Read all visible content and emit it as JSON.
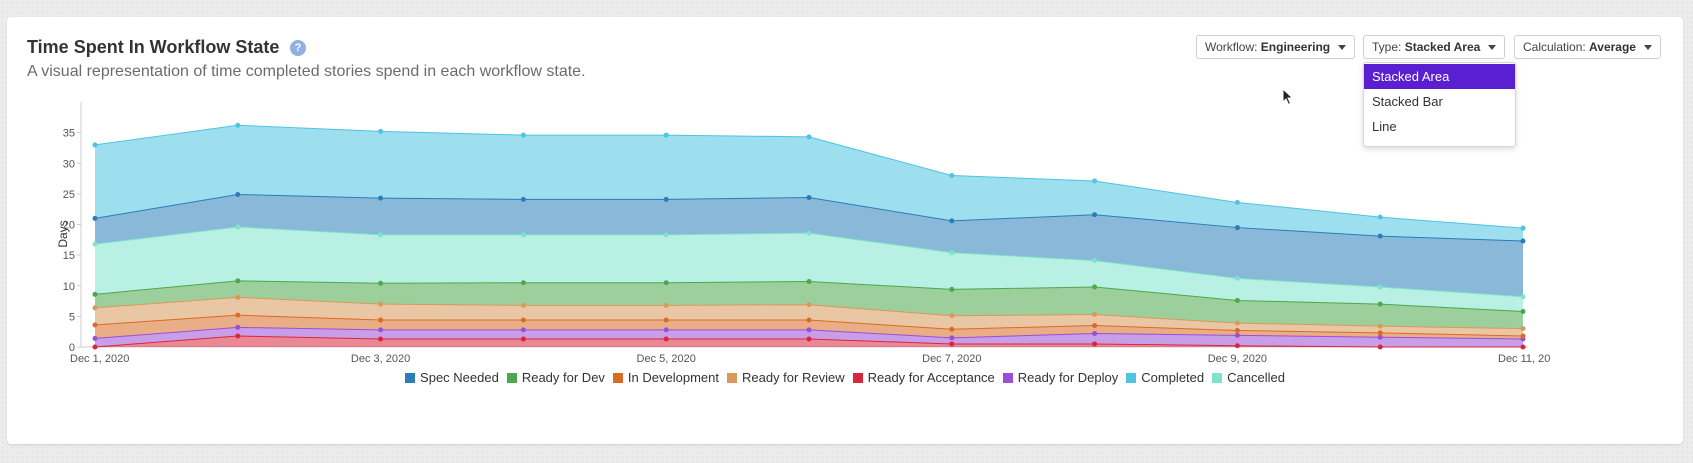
{
  "header": {
    "title": "Time Spent In Workflow State",
    "help_icon": "?",
    "subtitle": "A visual representation of time completed stories spend in each workflow state."
  },
  "controls": {
    "workflow": {
      "label": "Workflow:",
      "value": "Engineering"
    },
    "type": {
      "label": "Type:",
      "value": "Stacked Area"
    },
    "calculation": {
      "label": "Calculation:",
      "value": "Average"
    }
  },
  "type_menu": {
    "open": true,
    "options": [
      "Stacked Area",
      "Stacked Bar",
      "Line"
    ],
    "selected": "Stacked Area",
    "highlight_color": "#5a1fd1"
  },
  "chart_data": {
    "type": "area",
    "stacked": true,
    "ylabel": "Days",
    "ylim": [
      0,
      40
    ],
    "yticks": [
      0,
      5,
      10,
      15,
      20,
      25,
      30,
      35
    ],
    "x_labels": [
      "Dec 1, 2020",
      "Dec 3, 2020",
      "Dec 5, 2020",
      "Dec 7, 2020",
      "Dec 9, 2020",
      "Dec 11, 20"
    ],
    "x": [
      "2020-12-01",
      "2020-12-02",
      "2020-12-03",
      "2020-12-04",
      "2020-12-05",
      "2020-12-06",
      "2020-12-07",
      "2020-12-08",
      "2020-12-09",
      "2020-12-10",
      "2020-12-11"
    ],
    "series": [
      {
        "name": "Ready for Acceptance",
        "color": "#d9263f",
        "values": [
          0.0,
          1.8,
          1.3,
          1.3,
          1.3,
          1.3,
          0.5,
          0.5,
          0.2,
          0.0,
          0.0
        ]
      },
      {
        "name": "Ready for Deploy",
        "color": "#9a4fd6",
        "values": [
          1.4,
          1.4,
          1.5,
          1.5,
          1.5,
          1.5,
          1.0,
          1.7,
          1.7,
          1.6,
          1.3
        ]
      },
      {
        "name": "In Development",
        "color": "#d96b24",
        "values": [
          2.2,
          2.0,
          1.6,
          1.6,
          1.6,
          1.6,
          1.4,
          1.3,
          0.8,
          0.7,
          0.5
        ]
      },
      {
        "name": "Ready for Review",
        "color": "#d9995a",
        "values": [
          2.8,
          2.9,
          2.6,
          2.4,
          2.4,
          2.5,
          2.2,
          1.8,
          1.2,
          1.1,
          1.2
        ]
      },
      {
        "name": "Ready for Dev",
        "color": "#4ca84c",
        "values": [
          2.2,
          2.7,
          3.4,
          3.7,
          3.7,
          3.8,
          4.3,
          4.5,
          3.7,
          3.6,
          2.8
        ]
      },
      {
        "name": "Cancelled",
        "color": "#7de3cc",
        "values": [
          8.2,
          8.8,
          7.9,
          7.8,
          7.8,
          7.9,
          6.0,
          4.3,
          3.6,
          2.8,
          2.4
        ]
      },
      {
        "name": "Spec Needed",
        "color": "#2a7db8",
        "values": [
          4.2,
          5.3,
          6.0,
          5.8,
          5.8,
          5.8,
          5.2,
          7.5,
          8.3,
          8.3,
          9.1
        ]
      },
      {
        "name": "Completed",
        "color": "#4dc4e0",
        "values": [
          12.0,
          11.3,
          10.9,
          10.5,
          10.5,
          9.9,
          7.4,
          5.5,
          4.1,
          3.1,
          2.1
        ]
      }
    ],
    "legend": {
      "position": "bottom",
      "order": [
        "Spec Needed",
        "Ready for Dev",
        "In Development",
        "Ready for Review",
        "Ready for Acceptance",
        "Ready for Deploy",
        "Completed",
        "Cancelled"
      ]
    }
  }
}
